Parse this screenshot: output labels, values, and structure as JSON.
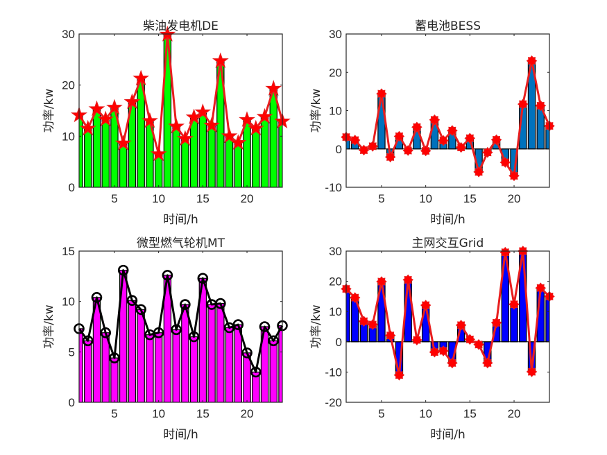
{
  "chart_data": [
    {
      "type": "bar",
      "title": "柴油发电机DE",
      "xlabel": "时间/h",
      "ylabel": "功率/kw",
      "xlim": [
        1,
        24
      ],
      "ylim": [
        0,
        30
      ],
      "xticks": [
        5,
        10,
        15,
        20
      ],
      "yticks": [
        0,
        10,
        20,
        30
      ],
      "bar_color": "#00FF00",
      "line_color": "#E81E1E",
      "marker": "pentagram",
      "x": [
        1,
        2,
        3,
        4,
        5,
        6,
        7,
        8,
        9,
        10,
        11,
        12,
        13,
        14,
        15,
        16,
        17,
        18,
        19,
        20,
        21,
        22,
        23,
        24
      ],
      "values": [
        14.1,
        11.5,
        15.3,
        13.3,
        15.6,
        8.6,
        16.7,
        21.3,
        13.0,
        6.5,
        29.9,
        11.9,
        9.5,
        13.7,
        14.7,
        12.1,
        24.7,
        10.0,
        8.7,
        13.2,
        11.5,
        13.8,
        19.3,
        12.9
      ]
    },
    {
      "type": "bar",
      "title": "蓄电池BESS",
      "xlabel": "时间/h",
      "ylabel": "功率/kw",
      "xlim": [
        1,
        24
      ],
      "ylim": [
        -10,
        30
      ],
      "xticks": [
        5,
        10,
        15,
        20
      ],
      "yticks": [
        -10,
        0,
        10,
        20,
        30
      ],
      "bar_color": "#0072BD",
      "line_color": "#E81E1E",
      "marker": "asterisk-filled",
      "x": [
        1,
        2,
        3,
        4,
        5,
        6,
        7,
        8,
        9,
        10,
        11,
        12,
        13,
        14,
        15,
        16,
        17,
        18,
        19,
        20,
        21,
        22,
        23,
        24
      ],
      "values": [
        3.1,
        2.3,
        -0.3,
        0.7,
        14.4,
        -2.1,
        3.3,
        -0.4,
        5.7,
        -0.5,
        7.6,
        2.2,
        4.8,
        0.4,
        2.8,
        -6.0,
        -0.9,
        2.4,
        -3.5,
        -7.0,
        11.7,
        23.0,
        11.3,
        6.0
      ]
    },
    {
      "type": "bar",
      "title": "微型燃气轮机MT",
      "xlabel": "时间/h",
      "ylabel": "功率/kw",
      "xlim": [
        1,
        24
      ],
      "ylim": [
        0,
        15
      ],
      "xticks": [
        5,
        10,
        15,
        20
      ],
      "yticks": [
        0,
        5,
        10,
        15
      ],
      "bar_color": "#FF00FF",
      "line_color": "#000000",
      "marker": "circle",
      "x": [
        1,
        2,
        3,
        4,
        5,
        6,
        7,
        8,
        9,
        10,
        11,
        12,
        13,
        14,
        15,
        16,
        17,
        18,
        19,
        20,
        21,
        22,
        23,
        24
      ],
      "values": [
        7.3,
        6.1,
        10.4,
        6.9,
        4.4,
        13.1,
        10.1,
        9.2,
        6.7,
        6.9,
        12.6,
        7.2,
        9.7,
        6.5,
        12.3,
        9.7,
        9.8,
        7.4,
        7.7,
        4.9,
        3.0,
        7.5,
        6.1,
        7.6
      ]
    },
    {
      "type": "bar",
      "title": "主网交互Grid",
      "xlabel": "时间/h",
      "ylabel": "功率/kw",
      "xlim": [
        1,
        24
      ],
      "ylim": [
        -20,
        30
      ],
      "xticks": [
        5,
        10,
        15,
        20
      ],
      "yticks": [
        -20,
        -10,
        0,
        10,
        20,
        30
      ],
      "bar_color": "#0000FF",
      "line_color": "#E81E1E",
      "marker": "asterisk-filled",
      "x": [
        1,
        2,
        3,
        4,
        5,
        6,
        7,
        8,
        9,
        10,
        11,
        12,
        13,
        14,
        15,
        16,
        17,
        18,
        19,
        20,
        21,
        22,
        23,
        24
      ],
      "values": [
        17.5,
        14.6,
        6.8,
        5.7,
        19.9,
        2.1,
        -11.0,
        20.5,
        0.6,
        12.1,
        -3.4,
        -3.0,
        -7.0,
        5.5,
        0.8,
        -0.9,
        -7.0,
        6.3,
        29.6,
        12.4,
        30.0,
        -9.9,
        17.8,
        15.0
      ]
    }
  ]
}
